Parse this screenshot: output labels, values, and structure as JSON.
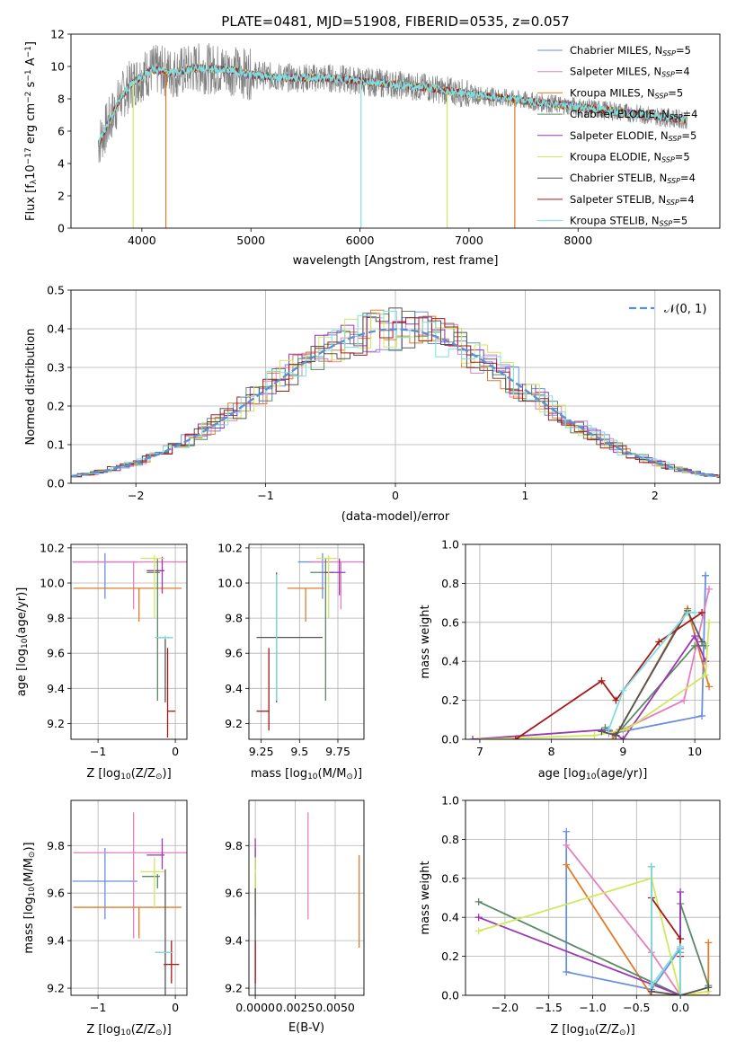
{
  "figure_title": "PLATE=0481, MJD=51908, FIBERID=0535, z=0.057",
  "models": [
    {
      "label": "Chabrier MILES, N",
      "sub": "SSP",
      "tail": "=5",
      "color": "#6a8fe0"
    },
    {
      "label": "Salpeter MILES, N",
      "sub": "SSP",
      "tail": "=4",
      "color": "#e57fbd"
    },
    {
      "label": "Kroupa MILES, N",
      "sub": "SSP",
      "tail": "=5",
      "color": "#e07b2a"
    },
    {
      "label": "Chabrier ELODIE, N",
      "sub": "SSP",
      "tail": "=4",
      "color": "#5a8a68"
    },
    {
      "label": "Salpeter ELODIE, N",
      "sub": "SSP",
      "tail": "=5",
      "color": "#9b37b0"
    },
    {
      "label": "Kroupa ELODIE, N",
      "sub": "SSP",
      "tail": "=5",
      "color": "#cfe85e"
    },
    {
      "label": "Chabrier STELIB, N",
      "sub": "SSP",
      "tail": "=4",
      "color": "#555555"
    },
    {
      "label": "Salpeter STELIB, N",
      "sub": "SSP",
      "tail": "=4",
      "color": "#a81818"
    },
    {
      "label": "Kroupa STELIB, N",
      "sub": "SSP",
      "tail": "=5",
      "color": "#7fdede"
    }
  ],
  "chart_data": [
    {
      "id": "spectrum",
      "type": "line",
      "xlabel": "wavelength [Angstrom, rest frame]",
      "ylabel_html": "Flux [f_λ10^-17 erg cm^-2 s^-1 A^-1]",
      "ylabel_parts": [
        "Flux [f",
        "λ",
        "10",
        "−17",
        " erg cm",
        "−2",
        " s",
        "−1",
        " A",
        "−1",
        "]"
      ],
      "xlim": [
        3350,
        9300
      ],
      "ylim": [
        0,
        12
      ],
      "xticks": [
        4000,
        5000,
        6000,
        7000,
        8000
      ],
      "yticks": [
        0,
        2,
        4,
        6,
        8,
        10,
        12
      ],
      "spectrum_range": [
        3600,
        9000
      ],
      "continuum_knots": [
        [
          3600,
          5.2
        ],
        [
          3680,
          6.3
        ],
        [
          3800,
          8.0
        ],
        [
          3900,
          8.9
        ],
        [
          4000,
          9.4
        ],
        [
          4100,
          9.8
        ],
        [
          4300,
          9.6
        ],
        [
          4500,
          9.9
        ],
        [
          4800,
          9.8
        ],
        [
          5000,
          9.5
        ],
        [
          5300,
          9.3
        ],
        [
          5700,
          9.3
        ],
        [
          6000,
          9.1
        ],
        [
          6300,
          8.9
        ],
        [
          6600,
          8.7
        ],
        [
          7000,
          8.3
        ],
        [
          7500,
          7.9
        ],
        [
          8000,
          7.5
        ],
        [
          8500,
          7.1
        ],
        [
          9000,
          6.7
        ]
      ],
      "spikes": [
        [
          3920,
          0
        ],
        [
          4220,
          0
        ],
        [
          6010,
          0
        ],
        [
          6800,
          0
        ],
        [
          7420,
          0
        ]
      ],
      "note": "Data and model spectra overlap closely; flux varies around a smooth continuum"
    },
    {
      "id": "residuals",
      "type": "area",
      "xlabel": "(data-model)/error",
      "ylabel": "Normed distribution",
      "xlim": [
        -2.5,
        2.5
      ],
      "ylim": [
        0,
        0.5
      ],
      "xticks": [
        -2,
        -1,
        0,
        1,
        2
      ],
      "yticks": [
        0.0,
        0.1,
        0.2,
        0.3,
        0.4,
        0.5
      ],
      "legend": "𝒩(0, 1)",
      "reference_curve": "standard normal N(0,1)",
      "histogram_bin_width": 0.1,
      "note": "Nine step histograms of normalized residuals, one per model, scattered around the N(0,1) curve"
    },
    {
      "id": "age_vs_Z",
      "type": "scatter",
      "xlabel_parts": [
        "Z [log",
        "10",
        "(Z/Z",
        "⊙",
        ")]"
      ],
      "ylabel_parts": [
        "age  [log",
        "10",
        "(age/yr)]"
      ],
      "xlim": [
        -1.35,
        0.15
      ],
      "ylim": [
        9.11,
        10.22
      ],
      "xticks": [
        -1,
        0
      ],
      "yticks": [
        9.2,
        9.4,
        9.6,
        9.8,
        10.0,
        10.2
      ],
      "points": [
        {
          "x": -0.91,
          "xerr": [
            0.42,
            0.42
          ],
          "y": 10.12,
          "yerr": [
            0.21,
            0.05
          ]
        },
        {
          "x": -0.54,
          "xerr": [
            0.78,
            0.78
          ],
          "y": 10.12,
          "yerr": [
            0.27,
            0.0
          ]
        },
        {
          "x": -0.47,
          "xerr": [
            0.85,
            0.55
          ],
          "y": 9.97,
          "yerr": [
            0.19,
            0.0
          ]
        },
        {
          "x": -0.23,
          "xerr": [
            0.14,
            0.03
          ],
          "y": 10.06,
          "yerr": [
            0.73,
            0.08
          ]
        },
        {
          "x": -0.17,
          "xerr": [
            0.2,
            0.03
          ],
          "y": 10.07,
          "yerr": [
            0.13,
            0.08
          ]
        },
        {
          "x": -0.27,
          "xerr": [
            0.18,
            0.13
          ],
          "y": 10.14,
          "yerr": [
            0.34,
            0.02
          ]
        },
        {
          "x": -0.13,
          "xerr": [
            0.13,
            0.1
          ],
          "y": 9.69,
          "yerr": [
            0.37,
            0.0
          ]
        },
        {
          "x": -0.1,
          "xerr": [
            0.0,
            0.1
          ],
          "y": 9.27,
          "yerr": [
            0.15,
            0.36
          ]
        },
        {
          "x": -0.13,
          "xerr": [
            0.13,
            0.1
          ],
          "y": 9.69,
          "yerr": [
            0.01,
            0.01
          ]
        }
      ]
    },
    {
      "id": "age_vs_mass",
      "type": "scatter",
      "xlabel_parts": [
        "mass [log",
        "10",
        "(M/M",
        "⊙",
        ")]"
      ],
      "ylabel_parts": [
        "",
        "",
        ""
      ],
      "xlim": [
        9.17,
        9.92
      ],
      "ylim": [
        9.11,
        10.22
      ],
      "xticks": [
        9.25,
        9.5,
        9.75
      ],
      "yticks": [
        9.2,
        9.4,
        9.6,
        9.8,
        10.0,
        10.2
      ],
      "points": [
        {
          "x": 9.65,
          "xerr": [
            0.16,
            0.0
          ],
          "y": 10.12,
          "yerr": [
            0.21,
            0.05
          ]
        },
        {
          "x": 9.77,
          "xerr": [
            0.2,
            0.17
          ],
          "y": 10.12,
          "yerr": [
            0.27,
            0.0
          ]
        },
        {
          "x": 9.54,
          "xerr": [
            0.12,
            0.12
          ],
          "y": 9.97,
          "yerr": [
            0.19,
            0.0
          ]
        },
        {
          "x": 9.67,
          "xerr": [
            0.1,
            0.05
          ],
          "y": 10.06,
          "yerr": [
            0.73,
            0.08
          ]
        },
        {
          "x": 9.76,
          "xerr": [
            0.1,
            0.04
          ],
          "y": 10.06,
          "yerr": [
            0.13,
            0.08
          ]
        },
        {
          "x": 9.69,
          "xerr": [
            0.08,
            0.06
          ],
          "y": 10.14,
          "yerr": [
            0.34,
            0.02
          ]
        },
        {
          "x": 9.35,
          "xerr": [
            0.13,
            0.3
          ],
          "y": 9.69,
          "yerr": [
            0.37,
            0.37
          ]
        },
        {
          "x": 9.3,
          "xerr": [
            0.08,
            0.0
          ],
          "y": 9.27,
          "yerr": [
            0.11,
            0.36
          ]
        },
        {
          "x": 9.35,
          "xerr": [
            0.0,
            0.0
          ],
          "y": 9.69,
          "yerr": [
            0.36,
            0.36
          ]
        }
      ]
    },
    {
      "id": "weight_vs_age",
      "type": "line",
      "xlabel_parts": [
        "age  [log",
        "10",
        "(age/yr)]"
      ],
      "ylabel": "mass weight",
      "xlim": [
        6.8,
        10.35
      ],
      "ylim": [
        0,
        1
      ],
      "xticks": [
        7,
        8,
        9,
        10
      ],
      "yticks": [
        0.0,
        0.2,
        0.4,
        0.6,
        0.8,
        1.0
      ],
      "series": [
        {
          "model": 0,
          "x": [
            8.75,
            8.85,
            10.1,
            10.15,
            10.15
          ],
          "y": [
            0.05,
            0.03,
            0.12,
            0.84,
            0.84
          ]
        },
        {
          "model": 1,
          "x": [
            8.8,
            9.0,
            9.85,
            10.2
          ],
          "y": [
            0.03,
            0.05,
            0.2,
            0.77
          ]
        },
        {
          "model": 2,
          "x": [
            8.85,
            8.95,
            9.9,
            10.2
          ],
          "y": [
            0.0,
            0.05,
            0.67,
            0.27
          ]
        },
        {
          "model": 3,
          "x": [
            8.75,
            8.9,
            10.0,
            10.15
          ],
          "y": [
            0.06,
            0.02,
            0.48,
            0.48
          ]
        },
        {
          "model": 4,
          "x": [
            6.9,
            8.8,
            9.0,
            10.0,
            10.15
          ],
          "y": [
            0.0,
            0.05,
            0.0,
            0.53,
            0.4
          ]
        },
        {
          "model": 5,
          "x": [
            7.0,
            8.6,
            9.05,
            10.15,
            10.2
          ],
          "y": [
            0.0,
            0.02,
            0.05,
            0.33,
            0.6
          ]
        },
        {
          "model": 6,
          "x": [
            8.7,
            8.9,
            9.9,
            10.1
          ],
          "y": [
            0.04,
            0.02,
            0.66,
            0.5
          ]
        },
        {
          "model": 7,
          "x": [
            7.5,
            8.7,
            8.9,
            9.5,
            10.1
          ],
          "y": [
            0.0,
            0.3,
            0.2,
            0.5,
            0.65
          ]
        },
        {
          "model": 8,
          "x": [
            8.8,
            9.0,
            9.9,
            10.0
          ],
          "y": [
            0.05,
            0.25,
            0.65,
            0.65
          ]
        }
      ]
    },
    {
      "id": "mass_vs_Z",
      "type": "scatter",
      "xlabel_parts": [
        "Z [log",
        "10",
        "(Z/Z",
        "⊙",
        ")]"
      ],
      "ylabel_parts": [
        "mass [log",
        "10",
        "(M/M",
        "⊙",
        ")]"
      ],
      "xlim": [
        -1.35,
        0.15
      ],
      "ylim": [
        9.17,
        9.99
      ],
      "xticks": [
        -1,
        0
      ],
      "yticks": [
        9.2,
        9.4,
        9.6,
        9.8
      ],
      "points": [
        {
          "x": -0.91,
          "xerr": [
            0.42,
            0.42
          ],
          "y": 9.65,
          "yerr": [
            0.16,
            0.14
          ]
        },
        {
          "x": -0.54,
          "xerr": [
            0.78,
            0.78
          ],
          "y": 9.77,
          "yerr": [
            0.36,
            0.17
          ]
        },
        {
          "x": -0.47,
          "xerr": [
            0.85,
            0.55
          ],
          "y": 9.54,
          "yerr": [
            0.13,
            0.0
          ]
        },
        {
          "x": -0.23,
          "xerr": [
            0.2,
            0.03
          ],
          "y": 9.67,
          "yerr": [
            0.05,
            0.01
          ]
        },
        {
          "x": -0.17,
          "xerr": [
            0.2,
            0.03
          ],
          "y": 9.76,
          "yerr": [
            0.06,
            0.07
          ]
        },
        {
          "x": -0.27,
          "xerr": [
            0.18,
            0.13
          ],
          "y": 9.69,
          "yerr": [
            0.15,
            0.06
          ]
        },
        {
          "x": -0.13,
          "xerr": [
            0.13,
            0.1
          ],
          "y": 9.35,
          "yerr": [
            0.35,
            0.35
          ]
        },
        {
          "x": -0.05,
          "xerr": [
            0.1,
            0.1
          ],
          "y": 9.3,
          "yerr": [
            0.08,
            0.1
          ]
        },
        {
          "x": -0.13,
          "xerr": [
            0.13,
            0.1
          ],
          "y": 9.35,
          "yerr": [
            0.0,
            0.0
          ]
        }
      ]
    },
    {
      "id": "mass_vs_ebv",
      "type": "scatter",
      "xlabel": "E(B-V)",
      "ylabel_parts": [
        "",
        "",
        ""
      ],
      "xlim": [
        -0.0004,
        0.0068
      ],
      "ylim": [
        9.17,
        9.99
      ],
      "xticks": [
        0.0,
        0.0025,
        0.005
      ],
      "xtick_labels": [
        "0.0000",
        "0.0025",
        "0.0050"
      ],
      "yticks": [
        9.2,
        9.4,
        9.6,
        9.8
      ],
      "points": [
        {
          "x": 0.0,
          "y": 9.65,
          "yerr": [
            0.16,
            0.14
          ]
        },
        {
          "x": 0.0033,
          "y": 9.77,
          "yerr": [
            0.28,
            0.17
          ]
        },
        {
          "x": 0.0065,
          "y": 9.54,
          "yerr": [
            0.17,
            0.22
          ]
        },
        {
          "x": 0.0,
          "y": 9.67,
          "yerr": [
            0.05,
            0.01
          ]
        },
        {
          "x": 0.0,
          "y": 9.76,
          "yerr": [
            0.06,
            0.07
          ]
        },
        {
          "x": 0.0,
          "y": 9.69,
          "yerr": [
            0.15,
            0.06
          ]
        },
        {
          "x": 0.0,
          "y": 9.35,
          "yerr": [
            0.35,
            0.27
          ]
        },
        {
          "x": 0.0,
          "y": 9.3,
          "yerr": [
            0.08,
            0.1
          ]
        },
        {
          "x": 0.0,
          "y": 9.35,
          "yerr": [
            0.0,
            0.0
          ]
        }
      ]
    },
    {
      "id": "weight_vs_Z",
      "type": "line",
      "xlabel_parts": [
        "Z [log",
        "10",
        "(Z/Z",
        "⊙",
        ")]"
      ],
      "ylabel": "mass weight",
      "xlim": [
        -2.45,
        0.45
      ],
      "ylim": [
        0,
        1
      ],
      "xticks": [
        -2.0,
        -1.5,
        -1.0,
        -0.5,
        0.0
      ],
      "xtick_labels": [
        "−2.0",
        "−1.5",
        "−1.0",
        "−0.5",
        "0.0"
      ],
      "yticks": [
        0.0,
        0.2,
        0.4,
        0.6,
        0.8,
        1.0
      ],
      "series": [
        {
          "model": 0,
          "x": [
            -1.3,
            -1.3,
            -0.33,
            0.0,
            0.0
          ],
          "y": [
            0.84,
            0.12,
            0.03,
            0.24,
            0.22
          ]
        },
        {
          "model": 1,
          "x": [
            -1.3,
            -0.33,
            0.0
          ],
          "y": [
            0.77,
            0.22,
            0.0
          ]
        },
        {
          "model": 2,
          "x": [
            -1.3,
            -0.33,
            0.32,
            0.32
          ],
          "y": [
            0.67,
            0.0,
            0.0,
            0.27
          ]
        },
        {
          "model": 3,
          "x": [
            -2.3,
            0.0,
            0.0,
            0.32
          ],
          "y": [
            0.48,
            0.0,
            0.47,
            0.05
          ]
        },
        {
          "model": 4,
          "x": [
            -2.3,
            0.0,
            0.0
          ],
          "y": [
            0.4,
            0.0,
            0.53
          ]
        },
        {
          "model": 5,
          "x": [
            -2.3,
            -0.33,
            0.0,
            0.32
          ],
          "y": [
            0.33,
            0.6,
            0.0,
            0.02
          ]
        },
        {
          "model": 6,
          "x": [
            -0.33,
            -0.33,
            0.0,
            0.32
          ],
          "y": [
            0.66,
            0.02,
            0.0,
            0.04
          ]
        },
        {
          "model": 7,
          "x": [
            -0.33,
            0.0,
            0.0
          ],
          "y": [
            0.5,
            0.29,
            0.2
          ]
        },
        {
          "model": 8,
          "x": [
            -0.33,
            -0.33,
            0.0,
            0.0
          ],
          "y": [
            0.66,
            0.05,
            0.25,
            0.0
          ]
        }
      ]
    }
  ]
}
